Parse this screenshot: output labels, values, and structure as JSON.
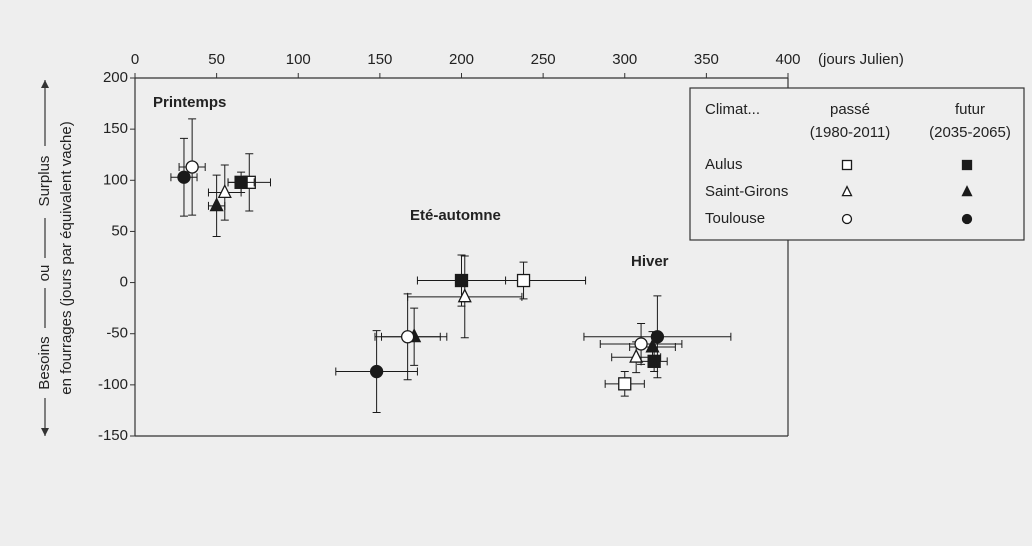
{
  "chart_data": {
    "type": "scatter",
    "x_label": "(jours Julien)",
    "y_label_lines": [
      "Besoins",
      "ou",
      "Surplus",
      "en fourrages (jours par équivalent vache)"
    ],
    "annotations": [
      "Printemps",
      "Eté-automne",
      "Hiver"
    ],
    "xlim": [
      0,
      400
    ],
    "xticks": [
      0,
      50,
      100,
      150,
      200,
      250,
      300,
      350,
      400
    ],
    "ylim": [
      -150,
      200
    ],
    "yticks": [
      -150,
      -100,
      -50,
      0,
      50,
      100,
      150,
      200
    ],
    "legend": {
      "title": "Climat...",
      "climates": [
        {
          "name": "passé",
          "period": "(1980-2011)",
          "fill": "#ffffff"
        },
        {
          "name": "futur",
          "period": "(2035-2065)",
          "fill": "#1a1a1a"
        }
      ]
    },
    "color": "#1a1a1a",
    "series": [
      {
        "name": "Aulus",
        "marker": "square",
        "climates": [
          {
            "x": [
              70,
              238,
              300
            ],
            "y": [
              98,
              2,
              -99
            ],
            "xerr": [
              13,
              38,
              12
            ],
            "yerr": [
              28,
              18,
              12
            ]
          },
          {
            "x": [
              65,
              200,
              318
            ],
            "y": [
              98,
              2,
              -77
            ],
            "xerr": [
              8,
              27,
              8
            ],
            "yerr": [
              10,
              25,
              10
            ]
          }
        ]
      },
      {
        "name": "Saint-Girons",
        "marker": "triangle",
        "climates": [
          {
            "x": [
              55,
              202,
              307
            ],
            "y": [
              88,
              -14,
              -73
            ],
            "xerr": [
              10,
              35,
              15
            ],
            "yerr": [
              27,
              40,
              15
            ]
          },
          {
            "x": [
              50,
              171,
              317
            ],
            "y": [
              75,
              -53,
              -63
            ],
            "xerr": [
              5,
              20,
              14
            ],
            "yerr": [
              30,
              28,
              15
            ]
          }
        ]
      },
      {
        "name": "Toulouse",
        "marker": "circle",
        "climates": [
          {
            "x": [
              35,
              167,
              310
            ],
            "y": [
              113,
              -53,
              -60
            ],
            "xerr": [
              8,
              20,
              25
            ],
            "yerr": [
              47,
              42,
              20
            ]
          },
          {
            "x": [
              30,
              148,
              320
            ],
            "y": [
              103,
              -87,
              -53
            ],
            "xerr": [
              8,
              25,
              45
            ],
            "yerr": [
              38,
              40,
              40
            ]
          }
        ]
      }
    ]
  }
}
